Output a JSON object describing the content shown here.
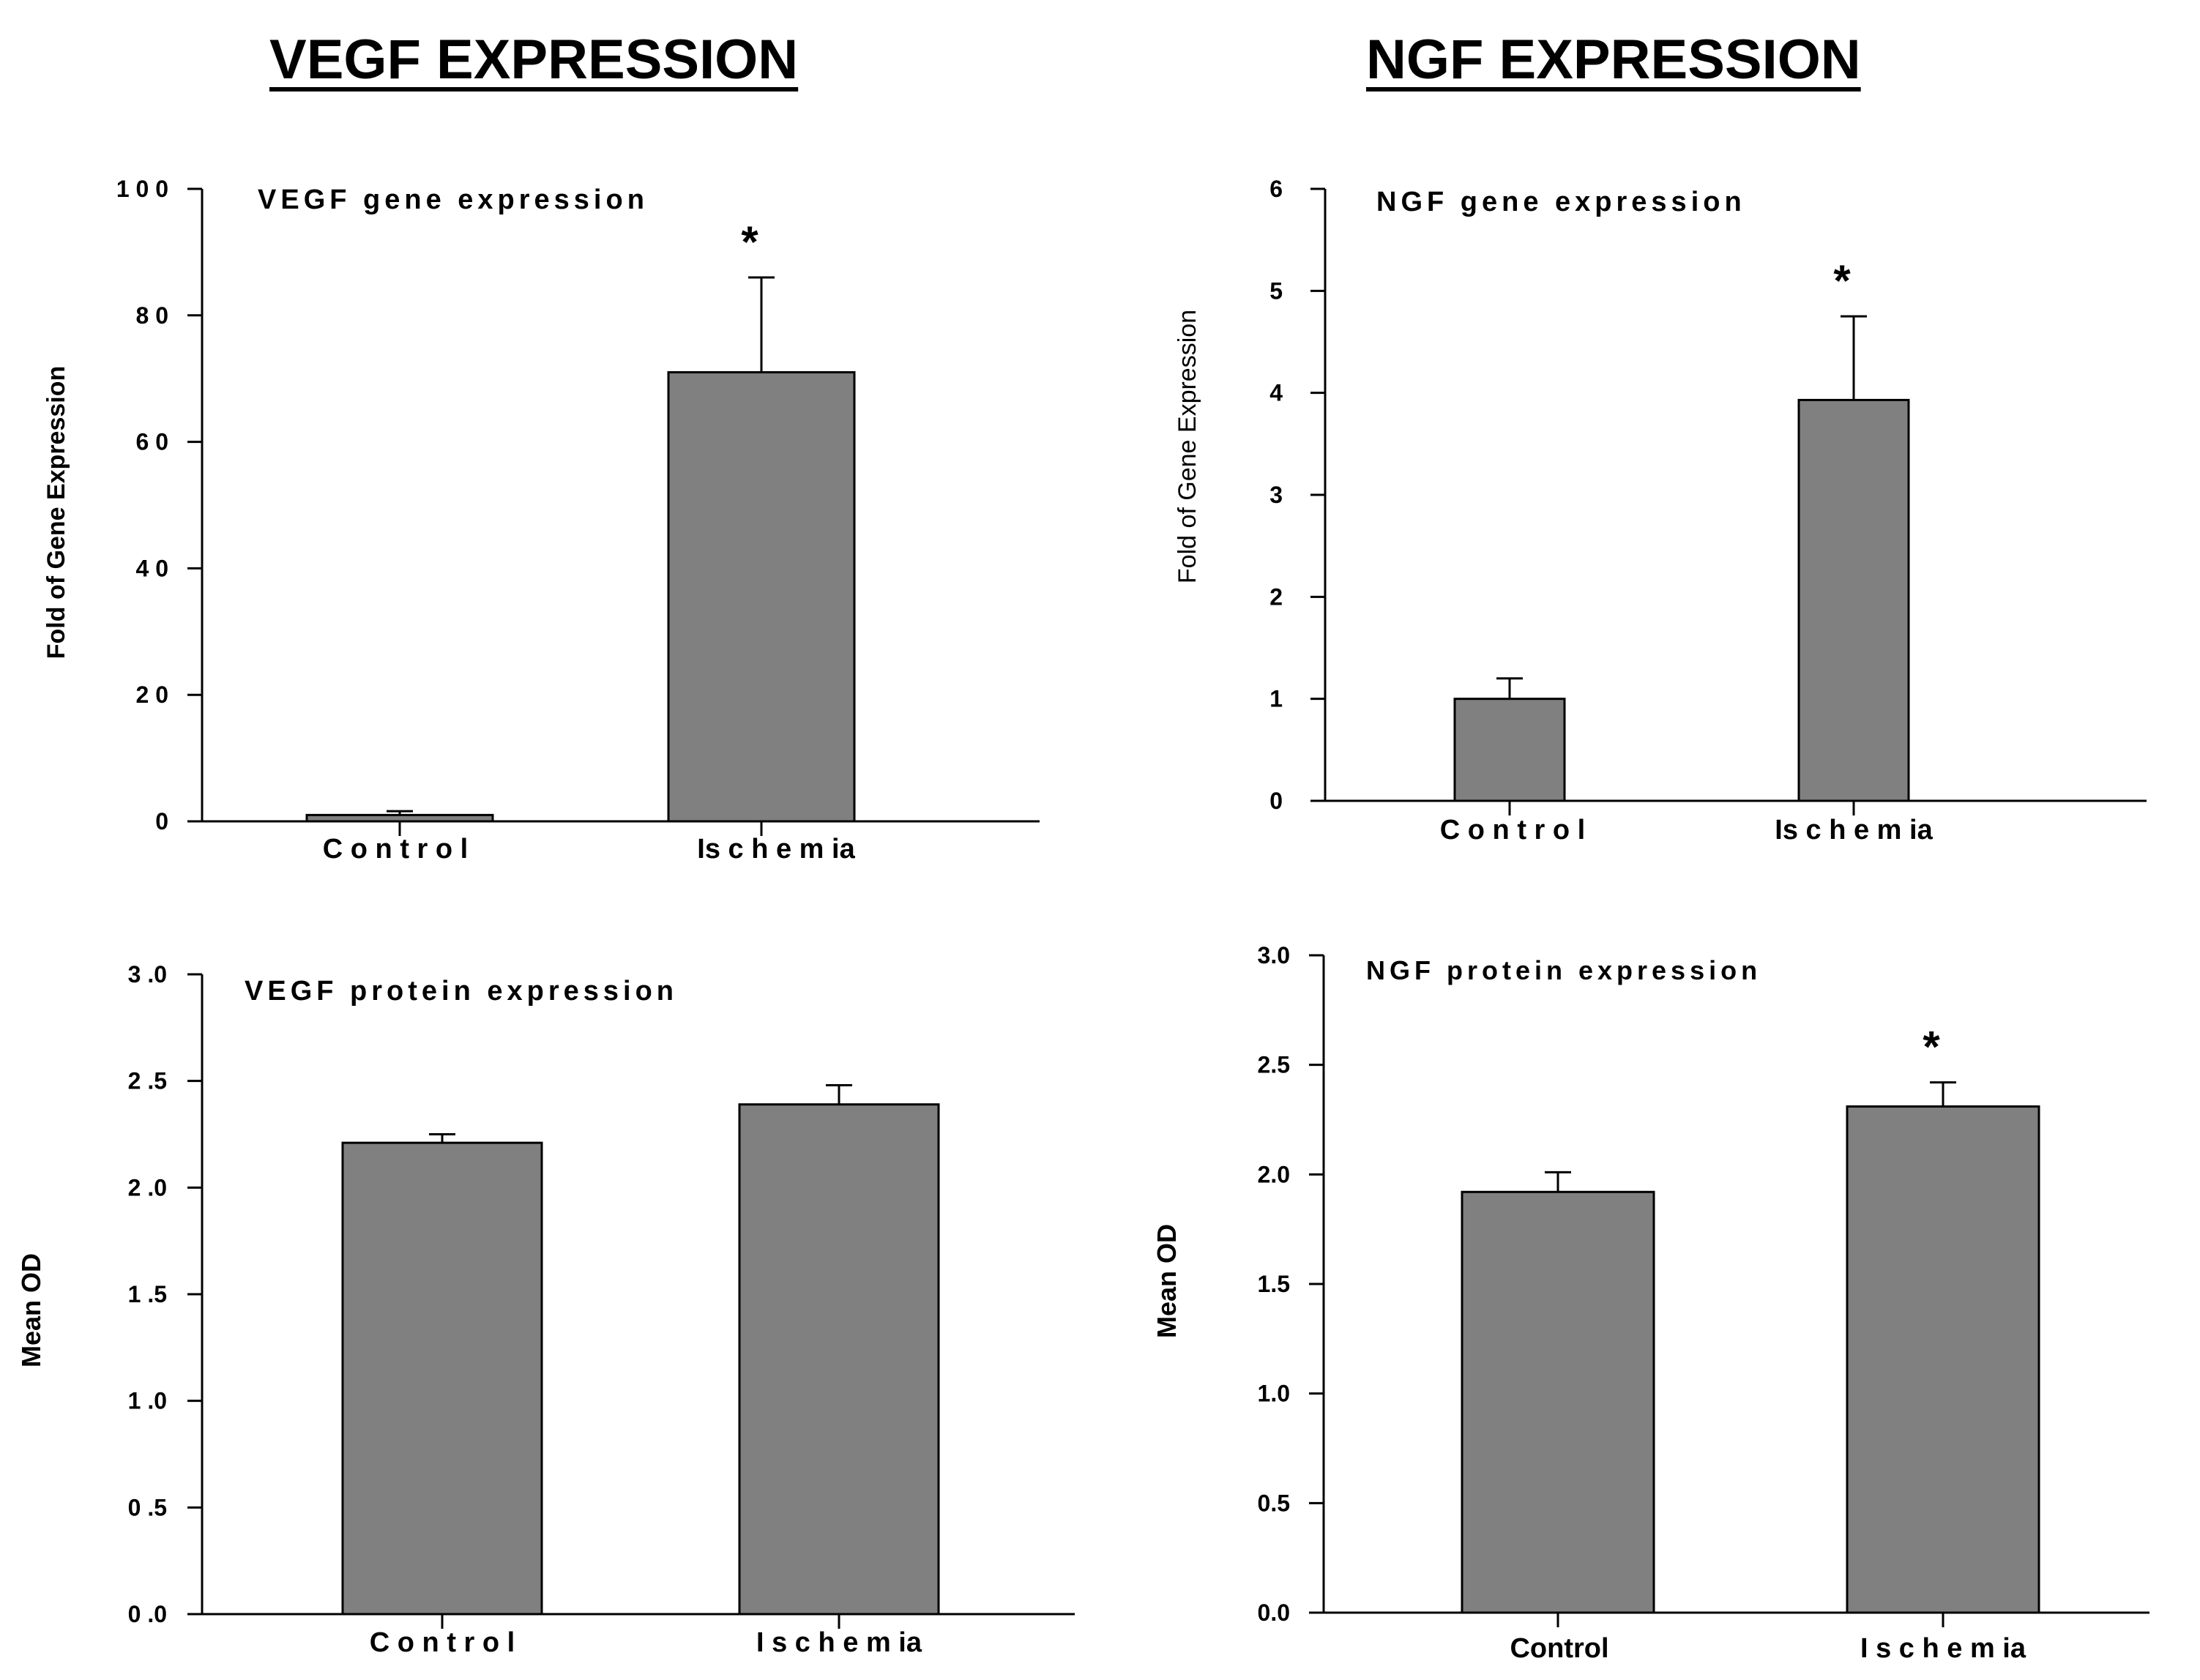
{
  "headings": {
    "vegf": "VEGF EXPRESSION",
    "ngf": "NGF EXPRESSION"
  },
  "colors": {
    "bar": "#808080",
    "axis": "#000000",
    "text": "#000000"
  },
  "chart_data": [
    {
      "id": "vegf-gene",
      "type": "bar",
      "title": "VEGF gene expression",
      "ylabel": "Fold of Gene Expression",
      "xlabel": "",
      "categories": [
        "Control",
        "Ischem ia"
      ],
      "values": [
        1,
        71
      ],
      "errors": [
        0.6,
        15
      ],
      "significance": [
        "",
        "*"
      ],
      "ylim": [
        0,
        100
      ],
      "yticks": [
        0,
        20,
        40,
        60,
        80,
        100
      ],
      "ytick_labels": [
        "0",
        "2 0",
        "4 0",
        "6 0",
        "8 0",
        "1 0 0"
      ],
      "category_labels": [
        "C o n t r o l",
        "Is c h e m  ia"
      ]
    },
    {
      "id": "ngf-gene",
      "type": "bar",
      "title": "NGF gene expression",
      "ylabel": "Fold of Gene Expression",
      "xlabel": "",
      "categories": [
        "Control",
        "Ischem ia"
      ],
      "values": [
        1,
        3.93
      ],
      "errors": [
        0.2,
        0.82
      ],
      "significance": [
        "",
        "*"
      ],
      "ylim": [
        0,
        6
      ],
      "yticks": [
        0,
        1,
        2,
        3,
        4,
        5,
        6
      ],
      "ytick_labels": [
        "0",
        "1",
        "2",
        "3",
        "4",
        "5",
        "6"
      ],
      "category_labels": [
        "C o n t r o l",
        "Is c h e m  ia"
      ]
    },
    {
      "id": "vegf-protein",
      "type": "bar",
      "title": "VEGF protein expression",
      "ylabel": "Mean OD",
      "xlabel": "",
      "categories": [
        "Control",
        "Ischem ia"
      ],
      "values": [
        2.21,
        2.39
      ],
      "errors": [
        0.04,
        0.09
      ],
      "significance": [
        "",
        ""
      ],
      "ylim": [
        0,
        3
      ],
      "yticks": [
        0,
        0.5,
        1,
        1.5,
        2,
        2.5,
        3
      ],
      "ytick_labels": [
        "0 .0",
        "0 .5",
        "1 .0",
        "1 .5",
        "2 .0",
        "2 .5",
        "3 .0"
      ],
      "category_labels": [
        "C o n t r o l",
        "I s c h e m  ia"
      ]
    },
    {
      "id": "ngf-protein",
      "type": "bar",
      "title": "NGF protein expression",
      "ylabel": "Mean OD",
      "xlabel": "",
      "categories": [
        "Control",
        "Ischem ia"
      ],
      "values": [
        1.92,
        2.31
      ],
      "errors": [
        0.09,
        0.11
      ],
      "significance": [
        "",
        "*"
      ],
      "ylim": [
        0,
        3
      ],
      "yticks": [
        0,
        0.5,
        1,
        1.5,
        2,
        2.5,
        3
      ],
      "ytick_labels": [
        "0.0",
        "0.5",
        "1.0",
        "1.5",
        "2.0",
        "2.5",
        "3.0"
      ],
      "category_labels": [
        "Control",
        "I s c h e m  ia"
      ]
    }
  ]
}
